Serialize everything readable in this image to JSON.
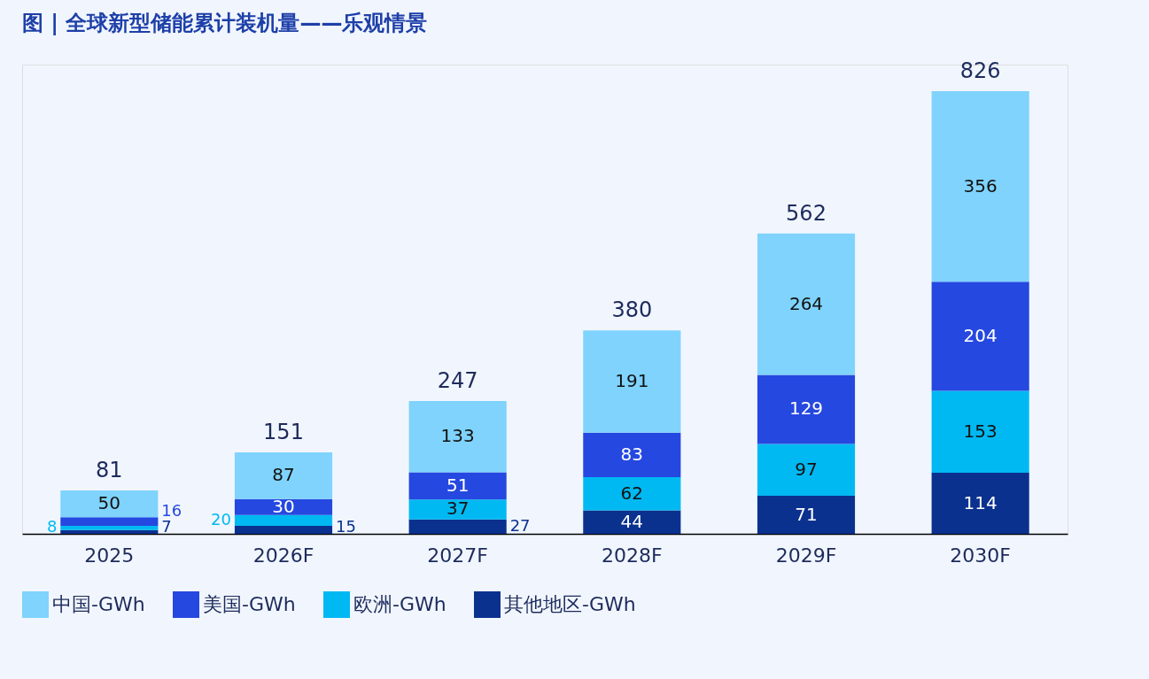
{
  "chart_data": {
    "type": "bar",
    "title": "图 | 全球新型储能累计装机量——乐观情景",
    "categories": [
      "2025",
      "2026F",
      "2027F",
      "2028F",
      "2029F",
      "2030F"
    ],
    "stacked": true,
    "data_labels": true,
    "legend": "bottom",
    "grid": false,
    "series": [
      {
        "name": "其他地区-GWh",
        "color": "#0b318f",
        "values": [
          7,
          15,
          27,
          44,
          71,
          114
        ]
      },
      {
        "name": "欧洲-GWh",
        "color": "#00b9f2",
        "values": [
          8,
          20,
          37,
          62,
          97,
          153
        ]
      },
      {
        "name": "美国-GWh",
        "color": "#2548e0",
        "values": [
          16,
          30,
          51,
          83,
          129,
          204
        ]
      },
      {
        "name": "中国-GWh",
        "color": "#7fd3fc",
        "values": [
          50,
          87,
          133,
          191,
          264,
          356
        ]
      }
    ],
    "totals": [
      "81",
      "151",
      "247",
      "380",
      "562",
      "826"
    ]
  }
}
